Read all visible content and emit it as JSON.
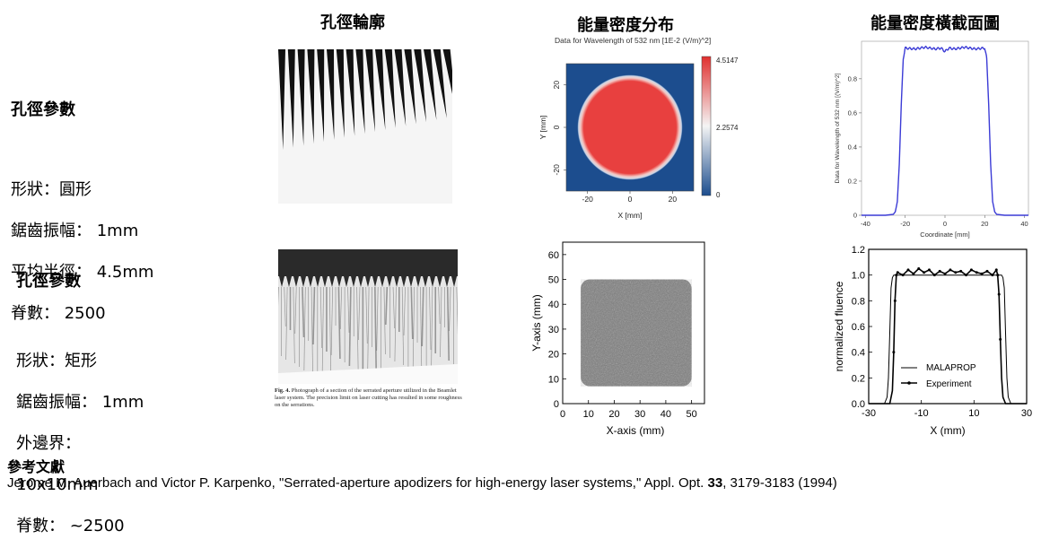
{
  "headers": {
    "col1": "孔徑輪廓",
    "col2": "能量密度分布",
    "col3": "能量密度橫截面圖"
  },
  "row1": {
    "title": "孔徑參數",
    "lines": [
      "形狀：圓形",
      "鋸齒振幅： 1mm",
      "平均半徑： 4.5mm",
      "脊數： 2500"
    ]
  },
  "row2": {
    "title": "孔徑參數",
    "lines": [
      "形狀：矩形",
      "鋸齒振幅： 1mm",
      "外邊界：",
      "10x10mm",
      "脊數： ~2500"
    ]
  },
  "fig4_caption": {
    "label": "Fig. 4.",
    "text": "Photograph of a section of the serrated aperture utilized in the Beamlet laser system.   The precision limit on laser cutting has resulted in some roughness on the serrations."
  },
  "reference": {
    "heading": "參考文獻",
    "pre": "Jerome M. Auerbach and Victor P. Karpenko, \"Serrated-aperture apodizers for high-energy laser systems,\" Appl. Opt. ",
    "volume": "33",
    "post": ", 3179-3183 (1994)"
  },
  "chart_data": [
    {
      "type": "heatmap",
      "title": "Data for Wavelength of 532 nm  [1E-2 (V/m)^2]",
      "xlabel": "X [mm]",
      "ylabel": "Y [mm]",
      "xticks": [
        "-20",
        "0",
        "20"
      ],
      "yticks": [
        "20",
        "0",
        "-20"
      ],
      "xlim": [
        -30,
        30
      ],
      "ylim": [
        -30,
        30
      ],
      "colorbar": {
        "min": 0,
        "mid": 2.2574,
        "max": 4.5147,
        "labels": [
          "4.5147",
          "2.2574",
          "0"
        ]
      },
      "shape": "circle",
      "radius_mm": 22.5,
      "colors": {
        "high": "#e8403f",
        "low": "#1c4d8e"
      }
    },
    {
      "type": "line",
      "xlabel": "Coordinate [mm]",
      "ylabel": "Data for Wavelength of 532 nm [(V/m)^2]",
      "xticks": [
        "-40",
        "-20",
        "0",
        "20",
        "40"
      ],
      "yticks": [
        "0",
        "0.2",
        "0.4",
        "0.6",
        "0.8"
      ],
      "xlim": [
        -42,
        42
      ],
      "ylim": [
        0,
        1.02
      ],
      "series": [
        {
          "color": "#3b3bd6",
          "x": [
            -42,
            -30,
            -26,
            -25,
            -24,
            -23,
            -22,
            -21,
            -20,
            -15,
            -10,
            -5,
            -2,
            0,
            2,
            5,
            10,
            15,
            20,
            21,
            22,
            23,
            24,
            25,
            26,
            30,
            42
          ],
          "y": [
            0,
            0,
            0.005,
            0.02,
            0.08,
            0.3,
            0.65,
            0.92,
            0.98,
            0.975,
            0.985,
            0.975,
            0.98,
            0.96,
            0.98,
            0.975,
            0.985,
            0.975,
            0.98,
            0.92,
            0.65,
            0.3,
            0.08,
            0.02,
            0.005,
            0,
            0
          ]
        }
      ]
    },
    {
      "type": "heatmap",
      "xlabel": "X-axis (mm)",
      "ylabel": "Y-axis (mm)",
      "xticks": [
        "0",
        "10",
        "20",
        "30",
        "40",
        "50"
      ],
      "yticks": [
        "0",
        "10",
        "20",
        "30",
        "40",
        "50",
        "60"
      ],
      "xlim": [
        0,
        55
      ],
      "ylim": [
        0,
        65
      ],
      "shape": "rounded-square",
      "square_mm": [
        7,
        50,
        7,
        50
      ]
    },
    {
      "type": "line",
      "xlabel": "X  (mm)",
      "ylabel": "normalized fluence",
      "xticks": [
        "-30",
        "-10",
        "10",
        "30"
      ],
      "yticks": [
        "0.0",
        "0.2",
        "0.4",
        "0.6",
        "0.8",
        "1.0",
        "1.2"
      ],
      "xlim": [
        -30,
        30
      ],
      "ylim": [
        0,
        1.2
      ],
      "legend": "lower-left",
      "series": [
        {
          "name": "MALAPROP",
          "x": [
            -30,
            -24,
            -23,
            -22.5,
            -22,
            -21.5,
            -21,
            -20.5,
            -20,
            -15,
            -10,
            -5,
            0,
            5,
            10,
            15,
            20,
            20.5,
            21,
            21.5,
            22,
            22.5,
            23,
            24,
            30
          ],
          "y": [
            0,
            0,
            0.05,
            0.2,
            0.55,
            0.9,
            0.98,
            1.0,
            1.0,
            1.0,
            1.0,
            1.0,
            1.0,
            1.0,
            1.0,
            1.0,
            1.0,
            1.0,
            0.98,
            0.9,
            0.55,
            0.2,
            0.05,
            0,
            0
          ]
        },
        {
          "name": "Experiment",
          "x": [
            -30,
            -22,
            -21,
            -20.5,
            -20,
            -19.5,
            -19,
            -17,
            -15,
            -13,
            -11,
            -9,
            -7,
            -5,
            -3,
            -1,
            1,
            3,
            5,
            7,
            9,
            11,
            13,
            15,
            17,
            18.5,
            19,
            19.5,
            20,
            20.5,
            21,
            22,
            30
          ],
          "y": [
            0,
            0,
            0.1,
            0.4,
            0.8,
            1.0,
            1.02,
            1.0,
            1.04,
            1.01,
            1.05,
            1.02,
            1.04,
            1.0,
            1.03,
            1.01,
            1.04,
            1.02,
            1.03,
            1.0,
            1.04,
            1.02,
            1.01,
            1.03,
            1.0,
            1.04,
            1.0,
            0.85,
            0.5,
            0.2,
            0.05,
            0,
            0
          ]
        }
      ]
    }
  ]
}
